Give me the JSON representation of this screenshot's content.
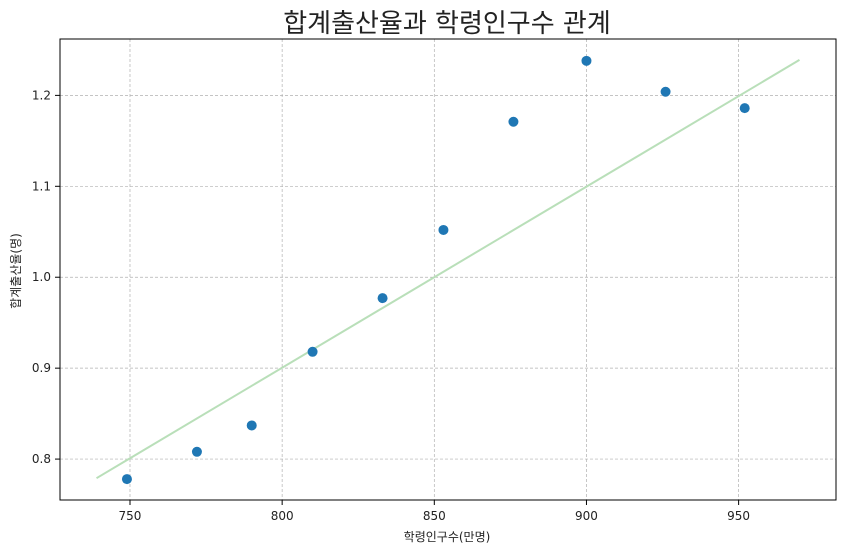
{
  "chart_data": {
    "type": "scatter",
    "title": "합계출산율과 학령인구수 관계",
    "xlabel": "학령인구수(만명)",
    "ylabel": "합계출산율(명)",
    "xlim": [
      727,
      982
    ],
    "ylim": [
      0.755,
      1.262
    ],
    "xticks": [
      750,
      800,
      850,
      900,
      950
    ],
    "yticks": [
      0.8,
      0.9,
      1.0,
      1.1,
      1.2
    ],
    "xtick_labels": [
      "750",
      "800",
      "850",
      "900",
      "950"
    ],
    "ytick_labels": [
      "0.8",
      "0.9",
      "1.0",
      "1.1",
      "1.2"
    ],
    "grid": true,
    "points": [
      {
        "x": 749,
        "y": 0.778
      },
      {
        "x": 772,
        "y": 0.808
      },
      {
        "x": 790,
        "y": 0.837
      },
      {
        "x": 810,
        "y": 0.918
      },
      {
        "x": 833,
        "y": 0.977
      },
      {
        "x": 853,
        "y": 1.052
      },
      {
        "x": 876,
        "y": 1.171
      },
      {
        "x": 900,
        "y": 1.238
      },
      {
        "x": 926,
        "y": 1.204
      },
      {
        "x": 952,
        "y": 1.186
      }
    ],
    "trendline": {
      "x": [
        739,
        970
      ],
      "y": [
        0.779,
        1.239
      ]
    },
    "colors": {
      "points": "#1f77b4",
      "trendline": "#b9dfb9",
      "grid": "#b0b0b0",
      "axes": "#000000"
    }
  }
}
